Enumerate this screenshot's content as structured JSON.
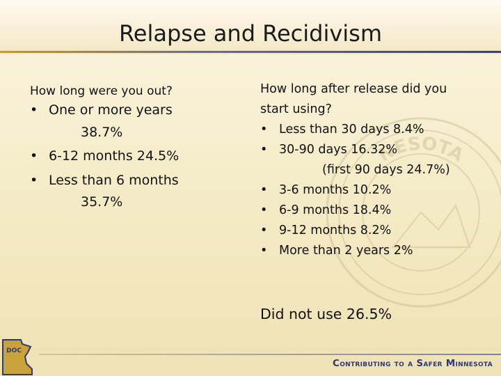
{
  "slide": {
    "title": "Relapse and Recidivism"
  },
  "left": {
    "question": "How long were you out?",
    "items": [
      {
        "text": "One or more years",
        "cont": "38.7%"
      },
      {
        "text": "6-12 months 24.5%"
      },
      {
        "text": "Less than 6 months",
        "cont": "35.7%"
      }
    ]
  },
  "right": {
    "question_line1": "How long after release did you",
    "question_line2": "start using?",
    "items": [
      {
        "text": "Less than 30 days  8.4%"
      },
      {
        "text": "30-90 days 16.32%",
        "note": "(first 90 days 24.7%)"
      },
      {
        "text": "3-6 months  10.2%"
      },
      {
        "text": "6-9 months  18.4%"
      },
      {
        "text": "9-12 months  8.2%"
      },
      {
        "text": "More than 2 years 2%"
      }
    ],
    "did_not_use": "Did not use 26.5%"
  },
  "bullet_char": "•",
  "seal_text": "NESOTA",
  "logo": {
    "label": "DOC",
    "icon": "minnesota-map-icon"
  },
  "footer": {
    "text": "Contributing to a Safer Minnesota"
  },
  "colors": {
    "footer_text": "#2e3a73",
    "accent_gold": "#c79a2e",
    "accent_blue": "#394275"
  }
}
